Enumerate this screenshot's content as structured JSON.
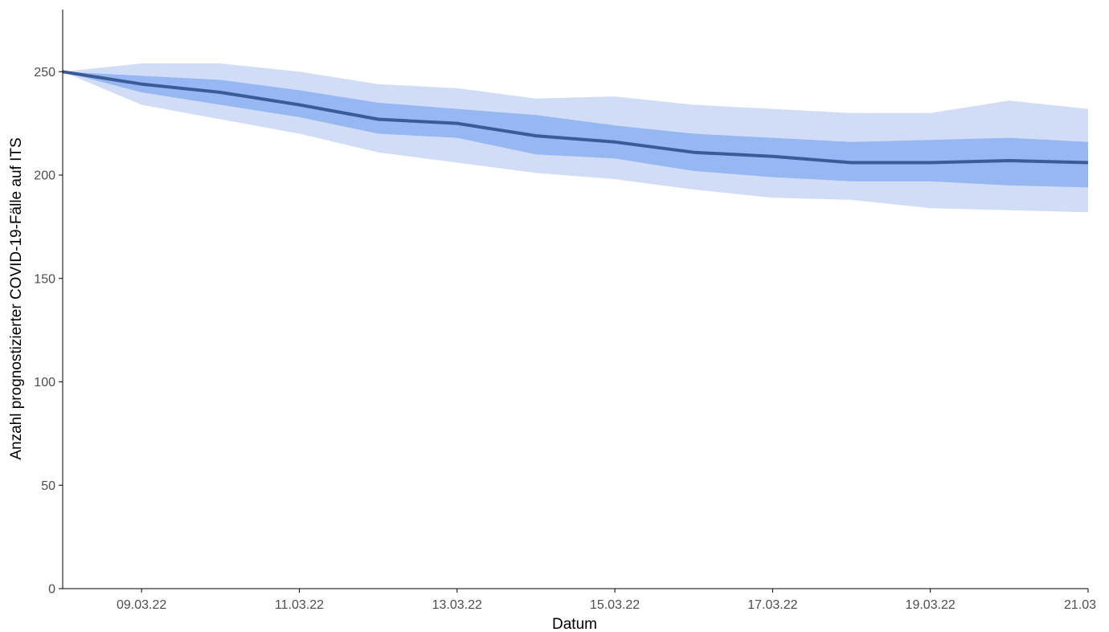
{
  "chart_data": {
    "type": "line",
    "title": "",
    "xlabel": "Datum",
    "ylabel": "Anzahl prognostizierter COVID-19-Fälle auf ITS",
    "x": [
      "08.03.22",
      "09.03.22",
      "10.03.22",
      "11.03.22",
      "12.03.22",
      "13.03.22",
      "14.03.22",
      "15.03.22",
      "16.03.22",
      "17.03.22",
      "18.03.22",
      "19.03.22",
      "20.03.22",
      "21.03.22"
    ],
    "x_tick_labels": [
      "09.03.22",
      "11.03.22",
      "13.03.22",
      "15.03.22",
      "17.03.22",
      "19.03.22",
      "21.03"
    ],
    "x_tick_index": [
      1,
      3,
      5,
      7,
      9,
      11,
      13
    ],
    "y_ticks": [
      0,
      50,
      100,
      150,
      200,
      250
    ],
    "ylim": [
      0,
      280
    ],
    "grid": false,
    "legend": "none",
    "series": [
      {
        "values": [
          250,
          244,
          240,
          234,
          227,
          225,
          219,
          216,
          211,
          209,
          206,
          206,
          207,
          206
        ]
      }
    ],
    "bands": [
      {
        "level": "outer",
        "lower": [
          250,
          234,
          227,
          220,
          211,
          206,
          201,
          198,
          193,
          189,
          188,
          184,
          183,
          182
        ],
        "upper": [
          250,
          254,
          254,
          250,
          244,
          242,
          237,
          238,
          234,
          232,
          230,
          230,
          236,
          232
        ]
      },
      {
        "level": "inner",
        "lower": [
          250,
          240,
          234,
          228,
          220,
          218,
          210,
          208,
          202,
          199,
          197,
          197,
          195,
          194
        ],
        "upper": [
          250,
          248,
          246,
          241,
          235,
          232,
          229,
          224,
          220,
          218,
          216,
          217,
          218,
          216
        ]
      }
    ],
    "colors": {
      "outer_band": "#d1ddf6",
      "inner_band": "#96b7f1",
      "line": "#3b5a98",
      "axis": "#000000",
      "tick_label": "#4d4d4d"
    }
  }
}
